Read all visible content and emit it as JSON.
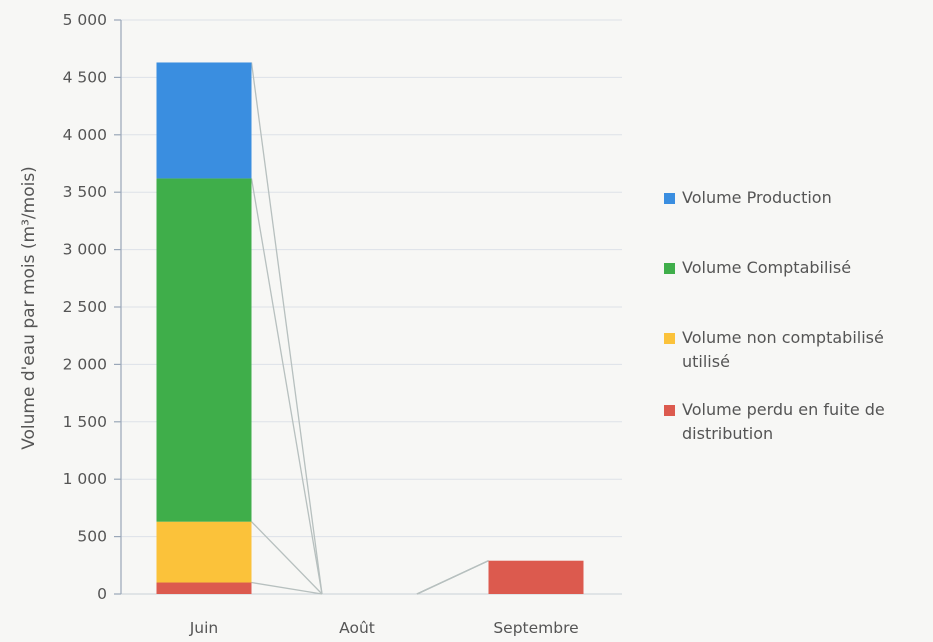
{
  "chart_data": {
    "type": "bar",
    "stacked": true,
    "categories": [
      "Juin",
      "Août",
      "Septembre"
    ],
    "series": [
      {
        "name": "Volume perdu en fuite de distribution",
        "color": "#dc5a4e",
        "values": [
          100,
          0,
          290
        ]
      },
      {
        "name": "Volume non comptabilisé utilisé",
        "color": "#fbc23a",
        "values": [
          530,
          0,
          0
        ]
      },
      {
        "name": "Volume Comptabilisé",
        "color": "#3fae4a",
        "values": [
          2990,
          0,
          0
        ]
      },
      {
        "name": "Volume Production",
        "color": "#3a8ee0",
        "values": [
          1010,
          0,
          0
        ]
      }
    ],
    "ylabel": "Volume d'eau par mois (m³/mois)",
    "ylim": [
      0,
      5000
    ],
    "yticks": [
      0,
      500,
      1000,
      1500,
      2000,
      2500,
      3000,
      3500,
      4000,
      4500,
      5000
    ],
    "ytick_labels": [
      "0",
      "500",
      "1 000",
      "1 500",
      "2 000",
      "2 500",
      "3 000",
      "3 500",
      "4 000",
      "4 500",
      "5 000"
    ],
    "grid": true,
    "legend_position": "right",
    "series_lines": true
  }
}
